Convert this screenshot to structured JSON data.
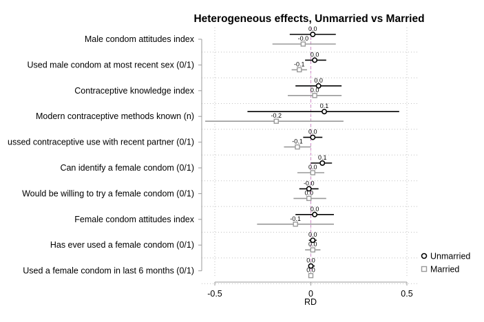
{
  "chart_data": {
    "type": "scatter",
    "subtype": "forest-plot",
    "title": "Heterogeneous effects, Unmarried vs Married",
    "xlabel": "RD",
    "ylabel": "",
    "xlim": [
      -0.55,
      0.55
    ],
    "xticks": [
      -0.5,
      0,
      0.5
    ],
    "xtick_labels": [
      "-0.5",
      "0",
      "0.5"
    ],
    "reference_line": 0,
    "grid": true,
    "legend_position": "bottom-right",
    "categories": [
      "Male condom attitudes index",
      "Used male condom at most recent sex (0/1)",
      "Contraceptive knowledge index",
      "Modern contraceptive methods known (n)",
      "ussed contraceptive use with recent partner (0/1)",
      "Can identify a female condom (0/1)",
      "Would be willing to try a female condom (0/1)",
      "Female condom attitudes index",
      "Has ever used a female condom (0/1)",
      "Used a female condom in last 6 months (0/1)"
    ],
    "series": [
      {
        "name": "Unmarried",
        "color": "#000000",
        "marker": "circle",
        "estimates": [
          0.01,
          0.02,
          0.04,
          0.07,
          0.01,
          0.06,
          -0.01,
          0.02,
          0.01,
          0.0
        ],
        "ci_low": [
          -0.11,
          -0.03,
          -0.08,
          -0.33,
          -0.04,
          0.0,
          -0.06,
          -0.08,
          -0.01,
          -0.01
        ],
        "ci_high": [
          0.13,
          0.08,
          0.16,
          0.46,
          0.06,
          0.11,
          0.04,
          0.12,
          0.03,
          0.02
        ],
        "labels": [
          "0.0",
          "0.0",
          "0.0",
          "0.1",
          "0.0",
          "0.1",
          "-0.0",
          "0.0",
          "0.0",
          "0.0"
        ]
      },
      {
        "name": "Married",
        "color": "#999999",
        "marker": "square",
        "estimates": [
          -0.04,
          -0.06,
          0.02,
          -0.18,
          -0.07,
          0.01,
          -0.01,
          -0.08,
          0.01,
          0.0
        ],
        "ci_low": [
          -0.2,
          -0.1,
          -0.12,
          -0.55,
          -0.14,
          -0.07,
          -0.09,
          -0.28,
          -0.03,
          -0.01
        ],
        "ci_high": [
          0.13,
          -0.02,
          0.16,
          0.17,
          0.0,
          0.07,
          0.08,
          0.12,
          0.05,
          0.01
        ],
        "labels": [
          "-0.0",
          "-0.1",
          "0.0",
          "-0.2",
          "-0.1",
          "0.0",
          "0.0",
          "-0.1",
          "0.0",
          "0.0"
        ]
      }
    ]
  }
}
